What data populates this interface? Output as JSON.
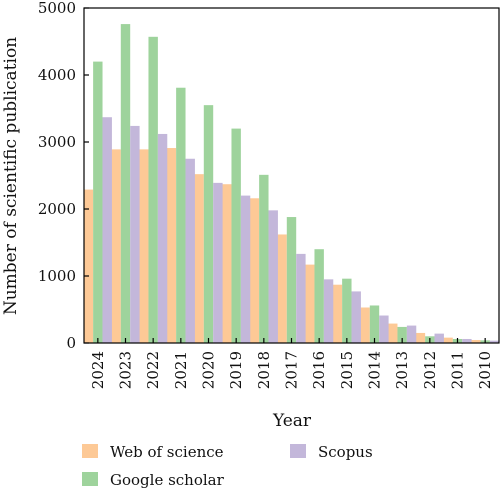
{
  "chart_data": {
    "type": "bar",
    "title": "",
    "xlabel": "Year",
    "ylabel": "Number of scientific publication",
    "ylim": [
      0,
      5000
    ],
    "yticks": [
      0,
      1000,
      2000,
      3000,
      4000,
      5000
    ],
    "grid": false,
    "legend_position": "bottom",
    "categories": [
      "2024",
      "2023",
      "2022",
      "2021",
      "2020",
      "2019",
      "2018",
      "2017",
      "2016",
      "2015",
      "2014",
      "2013",
      "2012",
      "2011",
      "2010"
    ],
    "series": [
      {
        "name": "Web of science",
        "color": "#FDC996",
        "values": [
          2290,
          2890,
          2890,
          2910,
          2520,
          2370,
          2160,
          1620,
          1170,
          870,
          530,
          290,
          150,
          80,
          45
        ]
      },
      {
        "name": "Google scholar",
        "color": "#9ED39C",
        "values": [
          4200,
          4760,
          4570,
          3810,
          3550,
          3200,
          2510,
          1880,
          1400,
          960,
          560,
          240,
          100,
          60,
          40
        ]
      },
      {
        "name": "Scopus",
        "color": "#C3B7DA",
        "values": [
          3370,
          3240,
          3120,
          2750,
          2390,
          2200,
          1980,
          1330,
          950,
          770,
          410,
          260,
          140,
          60,
          35
        ]
      }
    ]
  }
}
